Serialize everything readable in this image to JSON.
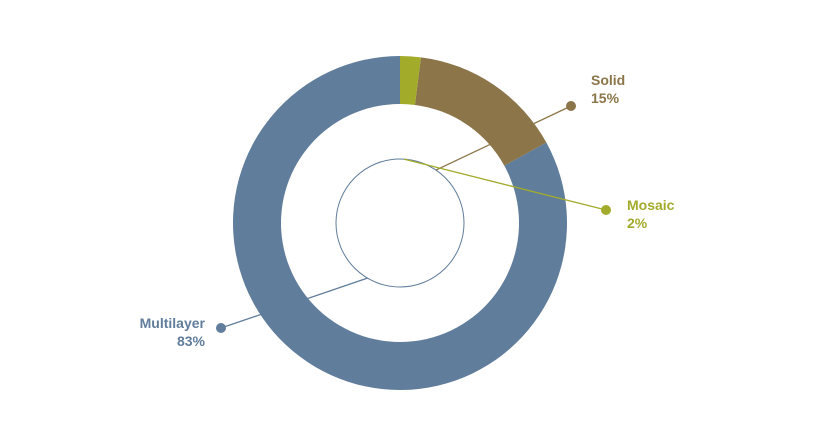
{
  "chart_data": {
    "type": "pie",
    "style": "donut",
    "categories": [
      "Multilayer",
      "Solid",
      "Mosaic"
    ],
    "values": [
      83,
      15,
      2
    ],
    "value_labels": [
      "83%",
      "15%",
      "2%"
    ],
    "colors": [
      "#607d9b",
      "#8b7549",
      "#a3ab2b"
    ],
    "start_angle_deg": 90,
    "direction": "counterclockwise"
  }
}
